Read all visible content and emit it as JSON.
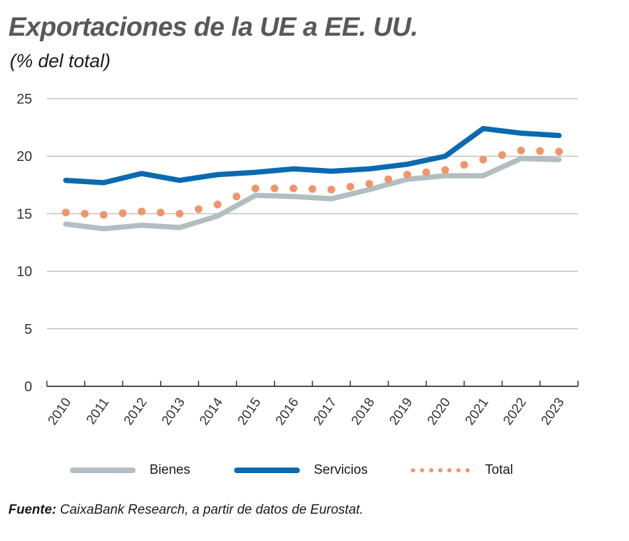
{
  "header": {
    "title": "Exportaciones de la UE a EE. UU.",
    "subtitle": "(% del total)"
  },
  "footer": {
    "source_label": "Fuente:",
    "source_text": " CaixaBank Research, a partir de datos de Eurostat."
  },
  "colors": {
    "bienes": "#b3bec2",
    "servicios": "#0a6ab0",
    "total": "#f0956a",
    "grid": "#a8a8a8",
    "axis": "#333333"
  },
  "chart_data": {
    "type": "line",
    "title": "Exportaciones de la UE a EE. UU.",
    "subtitle": "(% del total)",
    "xlabel": "",
    "ylabel": "",
    "x": [
      "2010",
      "2011",
      "2012",
      "2013",
      "2014",
      "2015",
      "2016",
      "2017",
      "2018",
      "2019",
      "2020",
      "2021",
      "2022",
      "2023"
    ],
    "ylim": [
      0,
      25
    ],
    "yticks": [
      0,
      5,
      10,
      15,
      20,
      25
    ],
    "grid": true,
    "legend_position": "bottom",
    "series": [
      {
        "name": "Bienes",
        "style": "solid",
        "values": [
          14.1,
          13.7,
          14.0,
          13.8,
          14.8,
          16.6,
          16.5,
          16.3,
          17.1,
          18.0,
          18.3,
          18.3,
          19.8,
          19.7
        ]
      },
      {
        "name": "Servicios",
        "style": "solid",
        "values": [
          17.9,
          17.7,
          18.5,
          17.9,
          18.4,
          18.6,
          18.9,
          18.7,
          18.9,
          19.3,
          20.0,
          22.4,
          22.0,
          21.8
        ]
      },
      {
        "name": "Total",
        "style": "dotted",
        "values": [
          15.1,
          14.9,
          15.2,
          15.0,
          15.8,
          17.2,
          17.2,
          17.1,
          17.6,
          18.4,
          18.8,
          19.7,
          20.5,
          20.4
        ]
      }
    ]
  }
}
